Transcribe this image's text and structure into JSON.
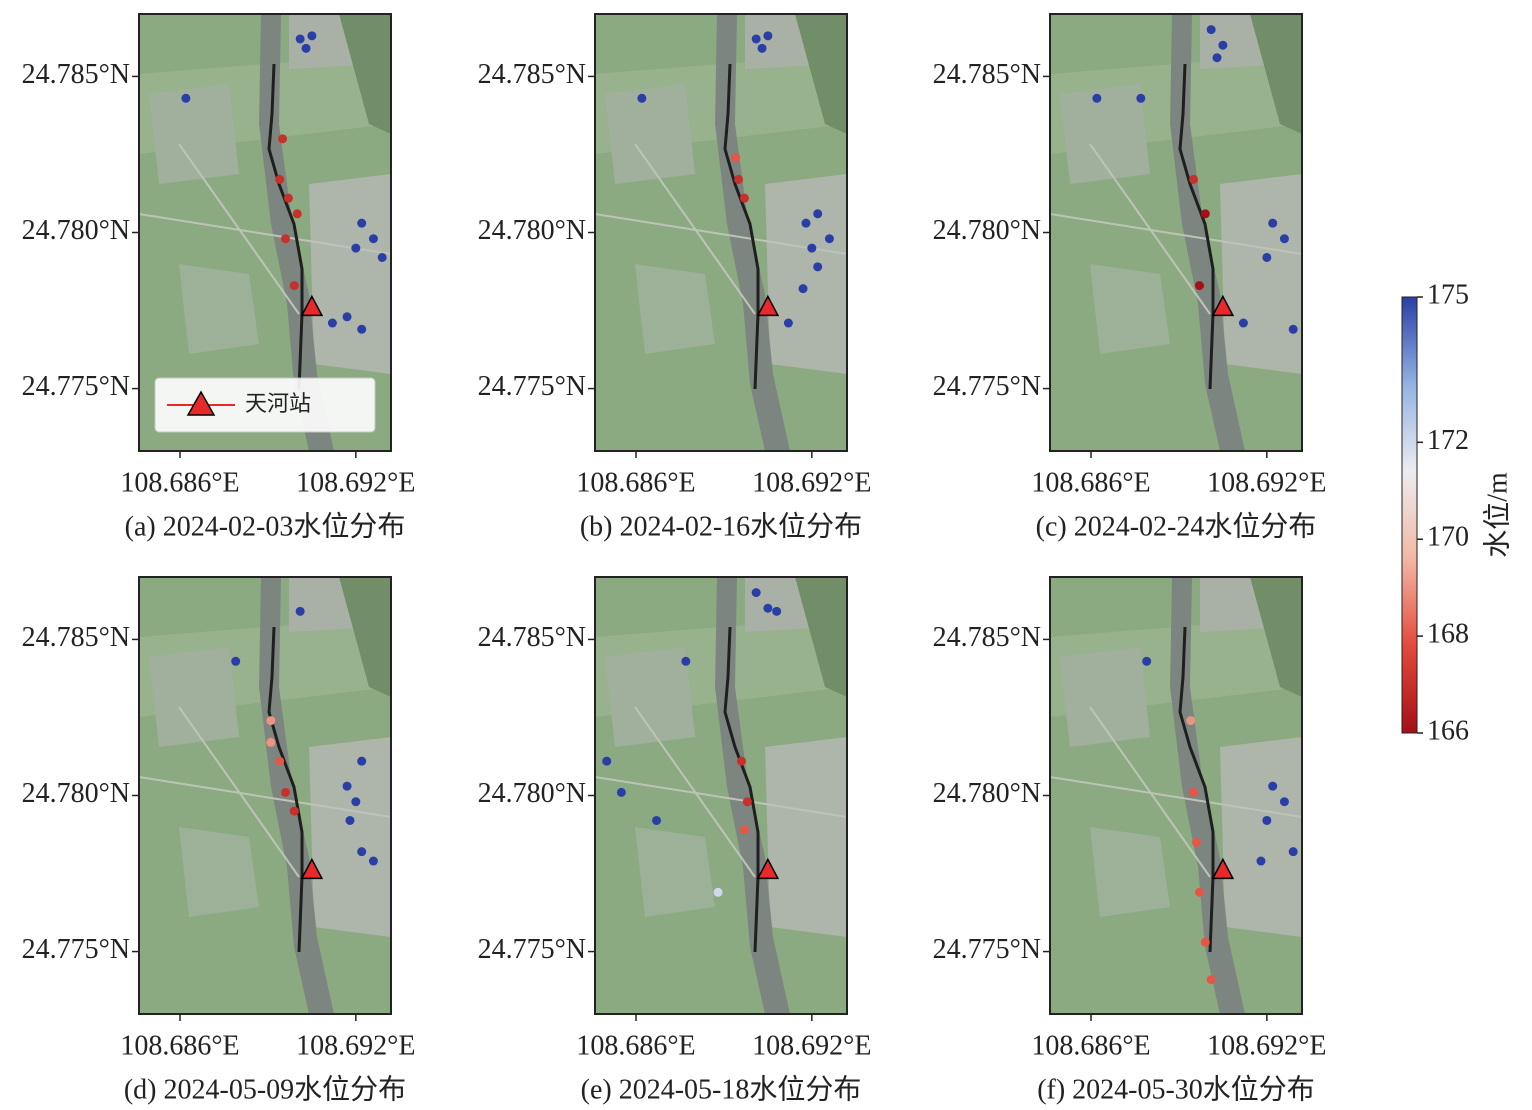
{
  "chart_data": [
    {
      "type": "scatter",
      "title": "(a) 2024-02-03水位分布",
      "legend": "lower left",
      "xlim": [
        108.6846,
        108.6932
      ],
      "ylim": [
        24.773,
        24.787
      ],
      "xticks": [
        {
          "value": 108.686,
          "label": "108.686°E"
        },
        {
          "value": 108.692,
          "label": "108.692°E"
        }
      ],
      "yticks": [
        {
          "value": 24.775,
          "label": "24.775°N"
        },
        {
          "value": 24.78,
          "label": "24.780°N"
        },
        {
          "value": 24.785,
          "label": "24.785°N"
        }
      ],
      "x": [
        108.6901,
        108.6903,
        108.6905,
        108.6922,
        108.6926,
        108.692,
        108.6929,
        108.6912,
        108.6917,
        108.6922,
        108.6862,
        108.6894,
        108.6897,
        108.69,
        108.6896,
        108.6895,
        108.6899
      ],
      "y": [
        24.7862,
        24.7859,
        24.7863,
        24.7803,
        24.7798,
        24.7795,
        24.7792,
        24.7771,
        24.7773,
        24.7769,
        24.7843,
        24.7817,
        24.7811,
        24.7806,
        24.7798,
        24.783,
        24.7783
      ],
      "values": [
        175,
        175,
        175,
        175,
        175,
        175,
        175,
        175,
        175,
        175,
        175,
        167,
        167,
        167,
        167,
        167,
        167
      ]
    },
    {
      "type": "scatter",
      "title": "(b) 2024-02-16水位分布",
      "xlim": [
        108.6846,
        108.6932
      ],
      "ylim": [
        24.773,
        24.787
      ],
      "xticks": [
        {
          "value": 108.686,
          "label": "108.686°E"
        },
        {
          "value": 108.692,
          "label": "108.692°E"
        }
      ],
      "yticks": [
        {
          "value": 24.775,
          "label": "24.775°N"
        },
        {
          "value": 24.78,
          "label": "24.780°N"
        },
        {
          "value": 24.785,
          "label": "24.785°N"
        }
      ],
      "x": [
        108.6901,
        108.6903,
        108.6905,
        108.6918,
        108.6922,
        108.6926,
        108.692,
        108.6922,
        108.6917,
        108.6912,
        108.6862,
        108.6894,
        108.6895,
        108.6897
      ],
      "y": [
        24.7862,
        24.7859,
        24.7863,
        24.7803,
        24.7806,
        24.7798,
        24.7795,
        24.7789,
        24.7782,
        24.7771,
        24.7843,
        24.7824,
        24.7817,
        24.7811
      ],
      "values": [
        175,
        175,
        175,
        175,
        175,
        175,
        175,
        175,
        175,
        175,
        175,
        168,
        167,
        167
      ]
    },
    {
      "type": "scatter",
      "title": "(c) 2024-02-24水位分布",
      "xlim": [
        108.6846,
        108.6932
      ],
      "ylim": [
        24.773,
        24.787
      ],
      "xticks": [
        {
          "value": 108.686,
          "label": "108.686°E"
        },
        {
          "value": 108.692,
          "label": "108.692°E"
        }
      ],
      "yticks": [
        {
          "value": 24.775,
          "label": "24.775°N"
        },
        {
          "value": 24.78,
          "label": "24.780°N"
        },
        {
          "value": 24.785,
          "label": "24.785°N"
        }
      ],
      "x": [
        108.6901,
        108.6905,
        108.6903,
        108.6922,
        108.6926,
        108.692,
        108.6929,
        108.6912,
        108.6862,
        108.6877,
        108.6895,
        108.6899,
        108.6897
      ],
      "y": [
        24.7865,
        24.786,
        24.7856,
        24.7803,
        24.7798,
        24.7792,
        24.7769,
        24.7771,
        24.7843,
        24.7843,
        24.7817,
        24.7806,
        24.7783
      ],
      "values": [
        175,
        175,
        175,
        175,
        175,
        175,
        175,
        175,
        175,
        175,
        167,
        166,
        166
      ]
    },
    {
      "type": "scatter",
      "title": "(d) 2024-05-09水位分布",
      "xlim": [
        108.6846,
        108.6932
      ],
      "ylim": [
        24.773,
        24.787
      ],
      "xticks": [
        {
          "value": 108.686,
          "label": "108.686°E"
        },
        {
          "value": 108.692,
          "label": "108.692°E"
        }
      ],
      "yticks": [
        {
          "value": 24.775,
          "label": "24.775°N"
        },
        {
          "value": 24.78,
          "label": "24.780°N"
        },
        {
          "value": 24.785,
          "label": "24.785°N"
        }
      ],
      "x": [
        108.6901,
        108.6879,
        108.6917,
        108.692,
        108.6922,
        108.6918,
        108.6922,
        108.6926,
        108.6891,
        108.6894,
        108.6896,
        108.6899,
        108.6891
      ],
      "y": [
        24.7859,
        24.7843,
        24.7803,
        24.7798,
        24.7811,
        24.7792,
        24.7782,
        24.7779,
        24.7817,
        24.7811,
        24.7801,
        24.7795,
        24.7824
      ],
      "values": [
        175,
        175,
        175,
        175,
        175,
        175,
        175,
        175,
        169,
        168,
        167,
        167,
        169
      ]
    },
    {
      "type": "scatter",
      "title": "(e) 2024-05-18水位分布",
      "xlim": [
        108.6846,
        108.6932
      ],
      "ylim": [
        24.773,
        24.787
      ],
      "xticks": [
        {
          "value": 108.686,
          "label": "108.686°E"
        },
        {
          "value": 108.692,
          "label": "108.692°E"
        }
      ],
      "yticks": [
        {
          "value": 24.775,
          "label": "24.775°N"
        },
        {
          "value": 24.78,
          "label": "24.780°N"
        },
        {
          "value": 24.785,
          "label": "24.785°N"
        }
      ],
      "x": [
        108.6901,
        108.6905,
        108.6908,
        108.685,
        108.6855,
        108.6877,
        108.6867,
        108.6888,
        108.6896,
        108.6898,
        108.6897
      ],
      "y": [
        24.7865,
        24.786,
        24.7859,
        24.7811,
        24.7801,
        24.7843,
        24.7792,
        24.7769,
        24.7811,
        24.7798,
        24.7789
      ],
      "values": [
        175,
        175,
        175,
        175,
        175,
        175,
        175,
        172,
        167,
        167,
        168
      ]
    },
    {
      "type": "scatter",
      "title": "(f) 2024-05-30水位分布",
      "xlim": [
        108.6846,
        108.6932
      ],
      "ylim": [
        24.773,
        24.787
      ],
      "xticks": [
        {
          "value": 108.686,
          "label": "108.686°E"
        },
        {
          "value": 108.692,
          "label": "108.692°E"
        }
      ],
      "yticks": [
        {
          "value": 24.775,
          "label": "24.775°N"
        },
        {
          "value": 24.78,
          "label": "24.780°N"
        },
        {
          "value": 24.785,
          "label": "24.785°N"
        }
      ],
      "x": [
        108.6879,
        108.6922,
        108.6926,
        108.692,
        108.6929,
        108.6918,
        108.6894,
        108.6895,
        108.6896,
        108.6897,
        108.6899,
        108.6901
      ],
      "y": [
        24.7843,
        24.7803,
        24.7798,
        24.7792,
        24.7782,
        24.7779,
        24.7824,
        24.7801,
        24.7785,
        24.7769,
        24.7753,
        24.7741
      ],
      "values": [
        175,
        175,
        175,
        175,
        175,
        175,
        169,
        168,
        168,
        168,
        168,
        168
      ]
    }
  ],
  "station": {
    "name": "天河站",
    "x": 108.6905,
    "y": 24.7776,
    "color": "#e8282a"
  },
  "colorbar": {
    "label": "水位/m",
    "lim": [
      166,
      175
    ],
    "ticks": [
      166,
      168,
      170,
      172,
      175
    ],
    "colormap": [
      "#a50f15",
      "#e34a3c",
      "#f2b8a6",
      "#ececef",
      "#94b2e2",
      "#2a3fa6"
    ]
  }
}
